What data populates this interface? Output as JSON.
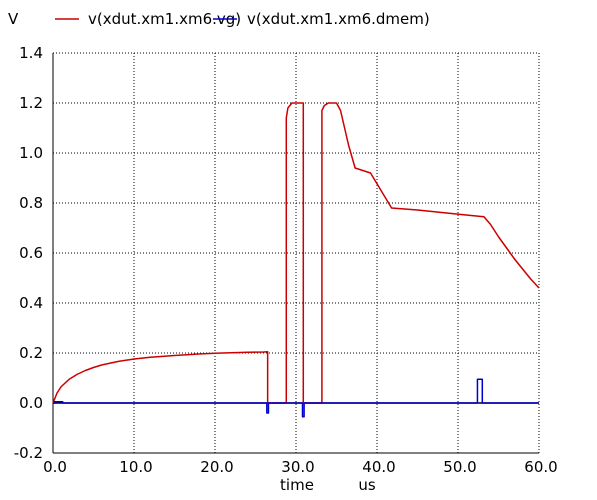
{
  "chart_data": {
    "type": "line",
    "ylabel": "V",
    "xlabel": "time",
    "xunit": "us",
    "xlim": [
      0,
      60
    ],
    "ylim": [
      -0.2,
      1.4
    ],
    "x_ticks": [
      0,
      10,
      20,
      30,
      40,
      50,
      60
    ],
    "x_tick_labels": [
      "0.0",
      "10.0",
      "20.0",
      "30.0",
      "40.0",
      "50.0",
      "60.0"
    ],
    "y_ticks": [
      -0.2,
      0,
      0.2,
      0.4,
      0.6,
      0.8,
      1.0,
      1.2,
      1.4
    ],
    "y_tick_labels": [
      "-0.2",
      "0.0",
      "0.2",
      "0.4",
      "0.6",
      "0.8",
      "1.0",
      "1.2",
      "1.4"
    ],
    "grid": true,
    "legend_position": "top",
    "series": [
      {
        "name": "v(xdut.xm1.xm6.vg)",
        "color": "#cc0000",
        "x": [
          0,
          0.5,
          1,
          2,
          3,
          4,
          5,
          6,
          8,
          10,
          12,
          15,
          18,
          20,
          22,
          24,
          26,
          26.5,
          26.5,
          28.8,
          28.8,
          29.0,
          29.5,
          30.5,
          30.9,
          30.9,
          33.2,
          33.2,
          33.5,
          34.0,
          35.0,
          35.5,
          36.0,
          36.5,
          37.3,
          39.2,
          40.5,
          41.8,
          45,
          48,
          51,
          53.2,
          54,
          55,
          56,
          57,
          58,
          59,
          60
        ],
        "y": [
          0.0,
          0.04,
          0.065,
          0.095,
          0.115,
          0.13,
          0.142,
          0.152,
          0.166,
          0.176,
          0.183,
          0.19,
          0.196,
          0.199,
          0.201,
          0.203,
          0.204,
          0.205,
          0.0,
          0.0,
          1.14,
          1.18,
          1.2,
          1.2,
          1.2,
          0.0,
          0.0,
          1.17,
          1.19,
          1.2,
          1.2,
          1.17,
          1.1,
          1.03,
          0.94,
          0.92,
          0.85,
          0.78,
          0.772,
          0.762,
          0.752,
          0.745,
          0.715,
          0.665,
          0.62,
          0.575,
          0.535,
          0.495,
          0.46
        ]
      },
      {
        "name": "v(xdut.xm1.xm6.dmem)",
        "color": "#0000cc",
        "x": [
          0,
          0.2,
          0.2,
          1.2,
          1.2,
          26.4,
          26.4,
          26.6,
          26.6,
          30.8,
          30.8,
          31.0,
          31.0,
          52.4,
          52.4,
          53.0,
          53.0,
          60
        ],
        "y": [
          0.0,
          0.0,
          0.005,
          0.005,
          0.0,
          0.0,
          -0.04,
          -0.04,
          0.0,
          0.0,
          -0.055,
          -0.055,
          0.0,
          0.0,
          0.095,
          0.095,
          0.0,
          0.0
        ]
      }
    ]
  }
}
